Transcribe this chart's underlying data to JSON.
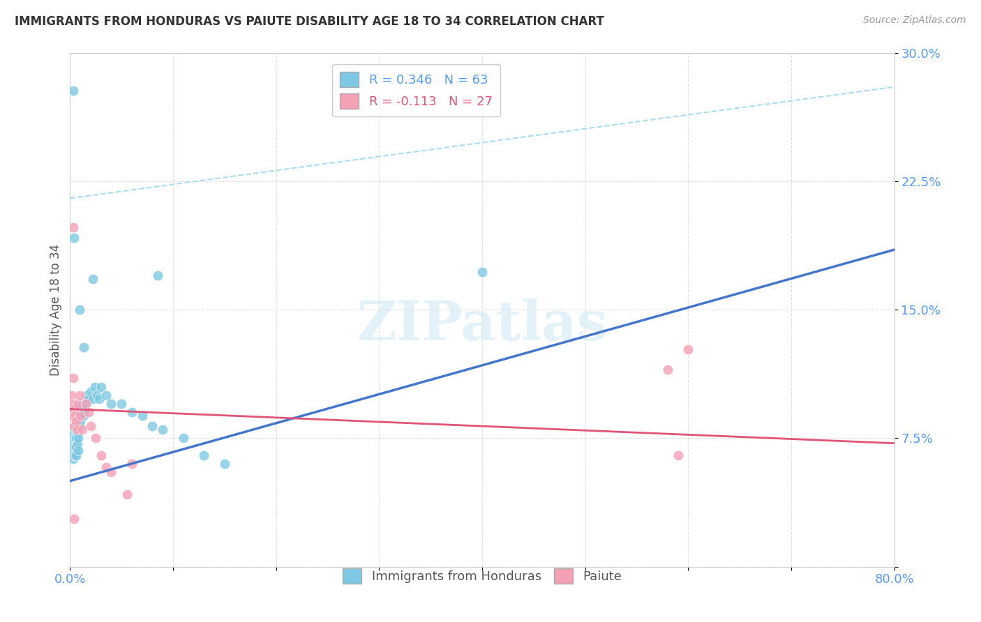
{
  "title": "IMMIGRANTS FROM HONDURAS VS PAIUTE DISABILITY AGE 18 TO 34 CORRELATION CHART",
  "source": "Source: ZipAtlas.com",
  "ylabel": "Disability Age 18 to 34",
  "xlabel": "",
  "xlim": [
    0.0,
    0.8
  ],
  "ylim": [
    0.0,
    0.3
  ],
  "xticks": [
    0.0,
    0.1,
    0.2,
    0.3,
    0.4,
    0.5,
    0.6,
    0.7,
    0.8
  ],
  "xticklabels": [
    "0.0%",
    "",
    "",
    "",
    "",
    "",
    "",
    "",
    "80.0%"
  ],
  "yticks": [
    0.0,
    0.075,
    0.15,
    0.225,
    0.3
  ],
  "yticklabels": [
    "",
    "7.5%",
    "15.0%",
    "22.5%",
    "30.0%"
  ],
  "grid_color": "#e0e0e0",
  "background_color": "#ffffff",
  "blue_color": "#7ec8e3",
  "pink_color": "#f4a0b5",
  "blue_line_color": "#4477cc",
  "pink_line_color": "#e05575",
  "blue_dash_color": "#aaddee",
  "tick_label_color": "#5599ff",
  "legend_r1": "R = 0.346",
  "legend_n1": "N = 63",
  "legend_r2": "R = -0.113",
  "legend_n2": "N = 27",
  "watermark": "ZIPatlas",
  "blue_line_x0": 0.0,
  "blue_line_y0": 0.05,
  "blue_line_x1": 0.8,
  "blue_line_y1": 0.185,
  "pink_line_x0": 0.0,
  "pink_line_y0": 0.092,
  "pink_line_x1": 0.8,
  "pink_line_y1": 0.072,
  "dash_line_x0": 0.0,
  "dash_line_y0": 0.215,
  "dash_line_x1": 0.8,
  "dash_line_y1": 0.28,
  "blue_x": [
    0.001,
    0.001,
    0.001,
    0.002,
    0.002,
    0.002,
    0.002,
    0.003,
    0.003,
    0.003,
    0.003,
    0.004,
    0.004,
    0.004,
    0.005,
    0.005,
    0.005,
    0.005,
    0.006,
    0.006,
    0.006,
    0.006,
    0.007,
    0.007,
    0.007,
    0.008,
    0.008,
    0.008,
    0.008,
    0.009,
    0.009,
    0.01,
    0.01,
    0.011,
    0.012,
    0.013,
    0.014,
    0.015,
    0.016,
    0.018,
    0.02,
    0.022,
    0.024,
    0.026,
    0.028,
    0.03,
    0.035,
    0.04,
    0.05,
    0.06,
    0.07,
    0.08,
    0.09,
    0.11,
    0.13,
    0.15,
    0.009,
    0.004,
    0.003,
    0.013,
    0.022,
    0.085,
    0.4
  ],
  "blue_y": [
    0.075,
    0.072,
    0.068,
    0.08,
    0.075,
    0.07,
    0.065,
    0.078,
    0.072,
    0.068,
    0.063,
    0.075,
    0.07,
    0.065,
    0.08,
    0.075,
    0.07,
    0.065,
    0.08,
    0.075,
    0.07,
    0.065,
    0.082,
    0.078,
    0.072,
    0.085,
    0.08,
    0.075,
    0.068,
    0.088,
    0.082,
    0.09,
    0.085,
    0.092,
    0.095,
    0.088,
    0.092,
    0.095,
    0.1,
    0.098,
    0.102,
    0.098,
    0.105,
    0.1,
    0.098,
    0.105,
    0.1,
    0.095,
    0.095,
    0.09,
    0.088,
    0.082,
    0.08,
    0.075,
    0.065,
    0.06,
    0.15,
    0.192,
    0.278,
    0.128,
    0.168,
    0.17,
    0.172
  ],
  "pink_x": [
    0.001,
    0.002,
    0.002,
    0.003,
    0.004,
    0.004,
    0.005,
    0.006,
    0.007,
    0.008,
    0.009,
    0.01,
    0.012,
    0.015,
    0.018,
    0.02,
    0.025,
    0.03,
    0.035,
    0.04,
    0.055,
    0.06,
    0.003,
    0.58,
    0.6,
    0.59,
    0.004
  ],
  "pink_y": [
    0.1,
    0.095,
    0.088,
    0.11,
    0.092,
    0.082,
    0.088,
    0.085,
    0.08,
    0.095,
    0.1,
    0.088,
    0.08,
    0.095,
    0.09,
    0.082,
    0.075,
    0.065,
    0.058,
    0.055,
    0.042,
    0.06,
    0.198,
    0.115,
    0.127,
    0.065,
    0.028
  ]
}
